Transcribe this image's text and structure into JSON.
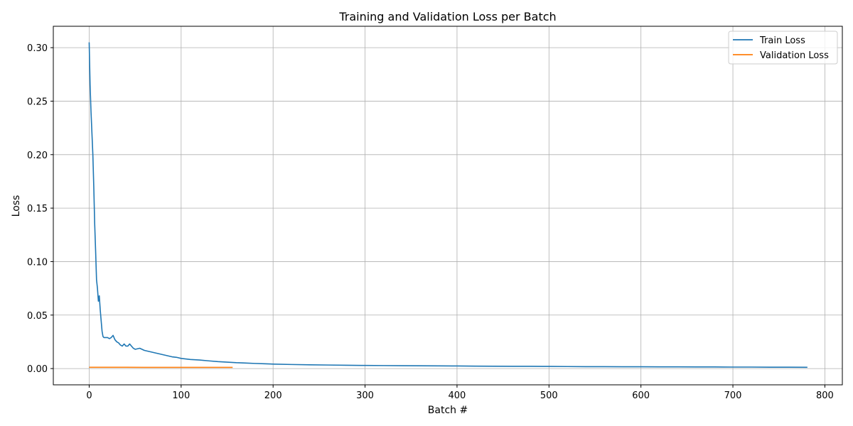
{
  "chart_data": {
    "type": "line",
    "title": "Training and Validation Loss per Batch",
    "xlabel": "Batch #",
    "ylabel": "Loss",
    "xlim": [
      -39,
      819
    ],
    "ylim": [
      -0.0152,
      0.32
    ],
    "xticks": [
      0,
      100,
      200,
      300,
      400,
      500,
      600,
      700,
      800
    ],
    "xtick_labels": [
      "0",
      "100",
      "200",
      "300",
      "400",
      "500",
      "600",
      "700",
      "800"
    ],
    "yticks": [
      0.0,
      0.05,
      0.1,
      0.15,
      0.2,
      0.25,
      0.3
    ],
    "ytick_labels": [
      "0.00",
      "0.05",
      "0.10",
      "0.15",
      "0.20",
      "0.25",
      "0.30"
    ],
    "grid": true,
    "legend_position": "top-right",
    "series": [
      {
        "name": "Train Loss",
        "color": "#1f77b4",
        "x": [
          0,
          1,
          2,
          3,
          4,
          5,
          6,
          7,
          8,
          9,
          10,
          11,
          12,
          13,
          14,
          15,
          16,
          18,
          20,
          22,
          24,
          26,
          28,
          30,
          32,
          34,
          36,
          38,
          40,
          42,
          44,
          46,
          48,
          50,
          55,
          60,
          65,
          70,
          75,
          80,
          85,
          90,
          95,
          100,
          110,
          120,
          130,
          140,
          150,
          160,
          170,
          180,
          190,
          200,
          220,
          240,
          260,
          280,
          300,
          320,
          340,
          360,
          380,
          400,
          420,
          440,
          460,
          480,
          500,
          520,
          540,
          560,
          580,
          600,
          620,
          640,
          660,
          680,
          700,
          720,
          740,
          760,
          781
        ],
        "values": [
          0.305,
          0.265,
          0.24,
          0.22,
          0.2,
          0.17,
          0.135,
          0.11,
          0.083,
          0.075,
          0.063,
          0.068,
          0.055,
          0.045,
          0.035,
          0.03,
          0.029,
          0.029,
          0.029,
          0.028,
          0.029,
          0.031,
          0.027,
          0.025,
          0.024,
          0.022,
          0.021,
          0.023,
          0.021,
          0.021,
          0.023,
          0.021,
          0.019,
          0.018,
          0.019,
          0.017,
          0.016,
          0.015,
          0.014,
          0.013,
          0.012,
          0.011,
          0.0105,
          0.0095,
          0.0085,
          0.008,
          0.0072,
          0.0065,
          0.006,
          0.0055,
          0.0052,
          0.0048,
          0.0045,
          0.0042,
          0.0038,
          0.0035,
          0.0033,
          0.0031,
          0.0029,
          0.0028,
          0.0027,
          0.0026,
          0.0025,
          0.0024,
          0.0023,
          0.0022,
          0.0021,
          0.0021,
          0.002,
          0.0019,
          0.0018,
          0.0018,
          0.0017,
          0.0017,
          0.0016,
          0.0016,
          0.0015,
          0.0015,
          0.0014,
          0.0014,
          0.0013,
          0.0013,
          0.0012
        ]
      },
      {
        "name": "Validation Loss",
        "color": "#ff7f0e",
        "x": [
          0,
          20,
          40,
          60,
          80,
          100,
          120,
          140,
          156
        ],
        "values": [
          0.0012,
          0.0012,
          0.0012,
          0.0011,
          0.0011,
          0.0011,
          0.0011,
          0.0011,
          0.0011
        ]
      }
    ]
  }
}
